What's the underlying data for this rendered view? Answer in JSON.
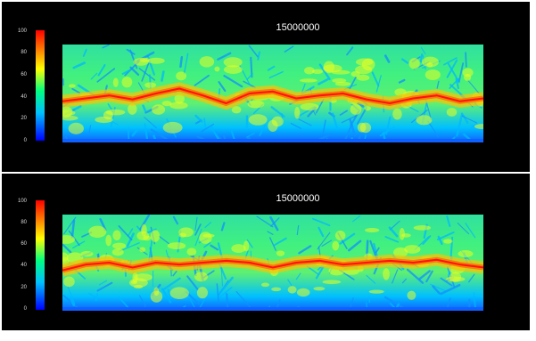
{
  "chart_data": [
    {
      "type": "heatmap",
      "title": "15000000",
      "colorbar": {
        "ticks": [
          "0",
          "20",
          "40",
          "60",
          "80",
          "100"
        ],
        "range": [
          0,
          100
        ],
        "colormap": [
          "#0000ff",
          "#00c0ff",
          "#00ff80",
          "#ffff00",
          "#ff8000",
          "#ff0000"
        ]
      },
      "field": {
        "ridge_profile": [
          0.58,
          0.55,
          0.52,
          0.56,
          0.5,
          0.45,
          0.52,
          0.6,
          0.5,
          0.48,
          0.55,
          0.52,
          0.5,
          0.56,
          0.6,
          0.55,
          0.52,
          0.58,
          0.55
        ]
      }
    },
    {
      "type": "heatmap",
      "title": "15000000",
      "colorbar": {
        "ticks": [
          "0",
          "20",
          "40",
          "60",
          "80",
          "100"
        ],
        "range": [
          0,
          100
        ],
        "colormap": [
          "#0000ff",
          "#00c0ff",
          "#00ff80",
          "#ffff00",
          "#ff8000",
          "#ff0000"
        ]
      },
      "field": {
        "ridge_profile": [
          0.58,
          0.52,
          0.5,
          0.55,
          0.5,
          0.52,
          0.5,
          0.48,
          0.5,
          0.55,
          0.5,
          0.48,
          0.52,
          0.5,
          0.48,
          0.5,
          0.47,
          0.52,
          0.55
        ]
      }
    }
  ]
}
